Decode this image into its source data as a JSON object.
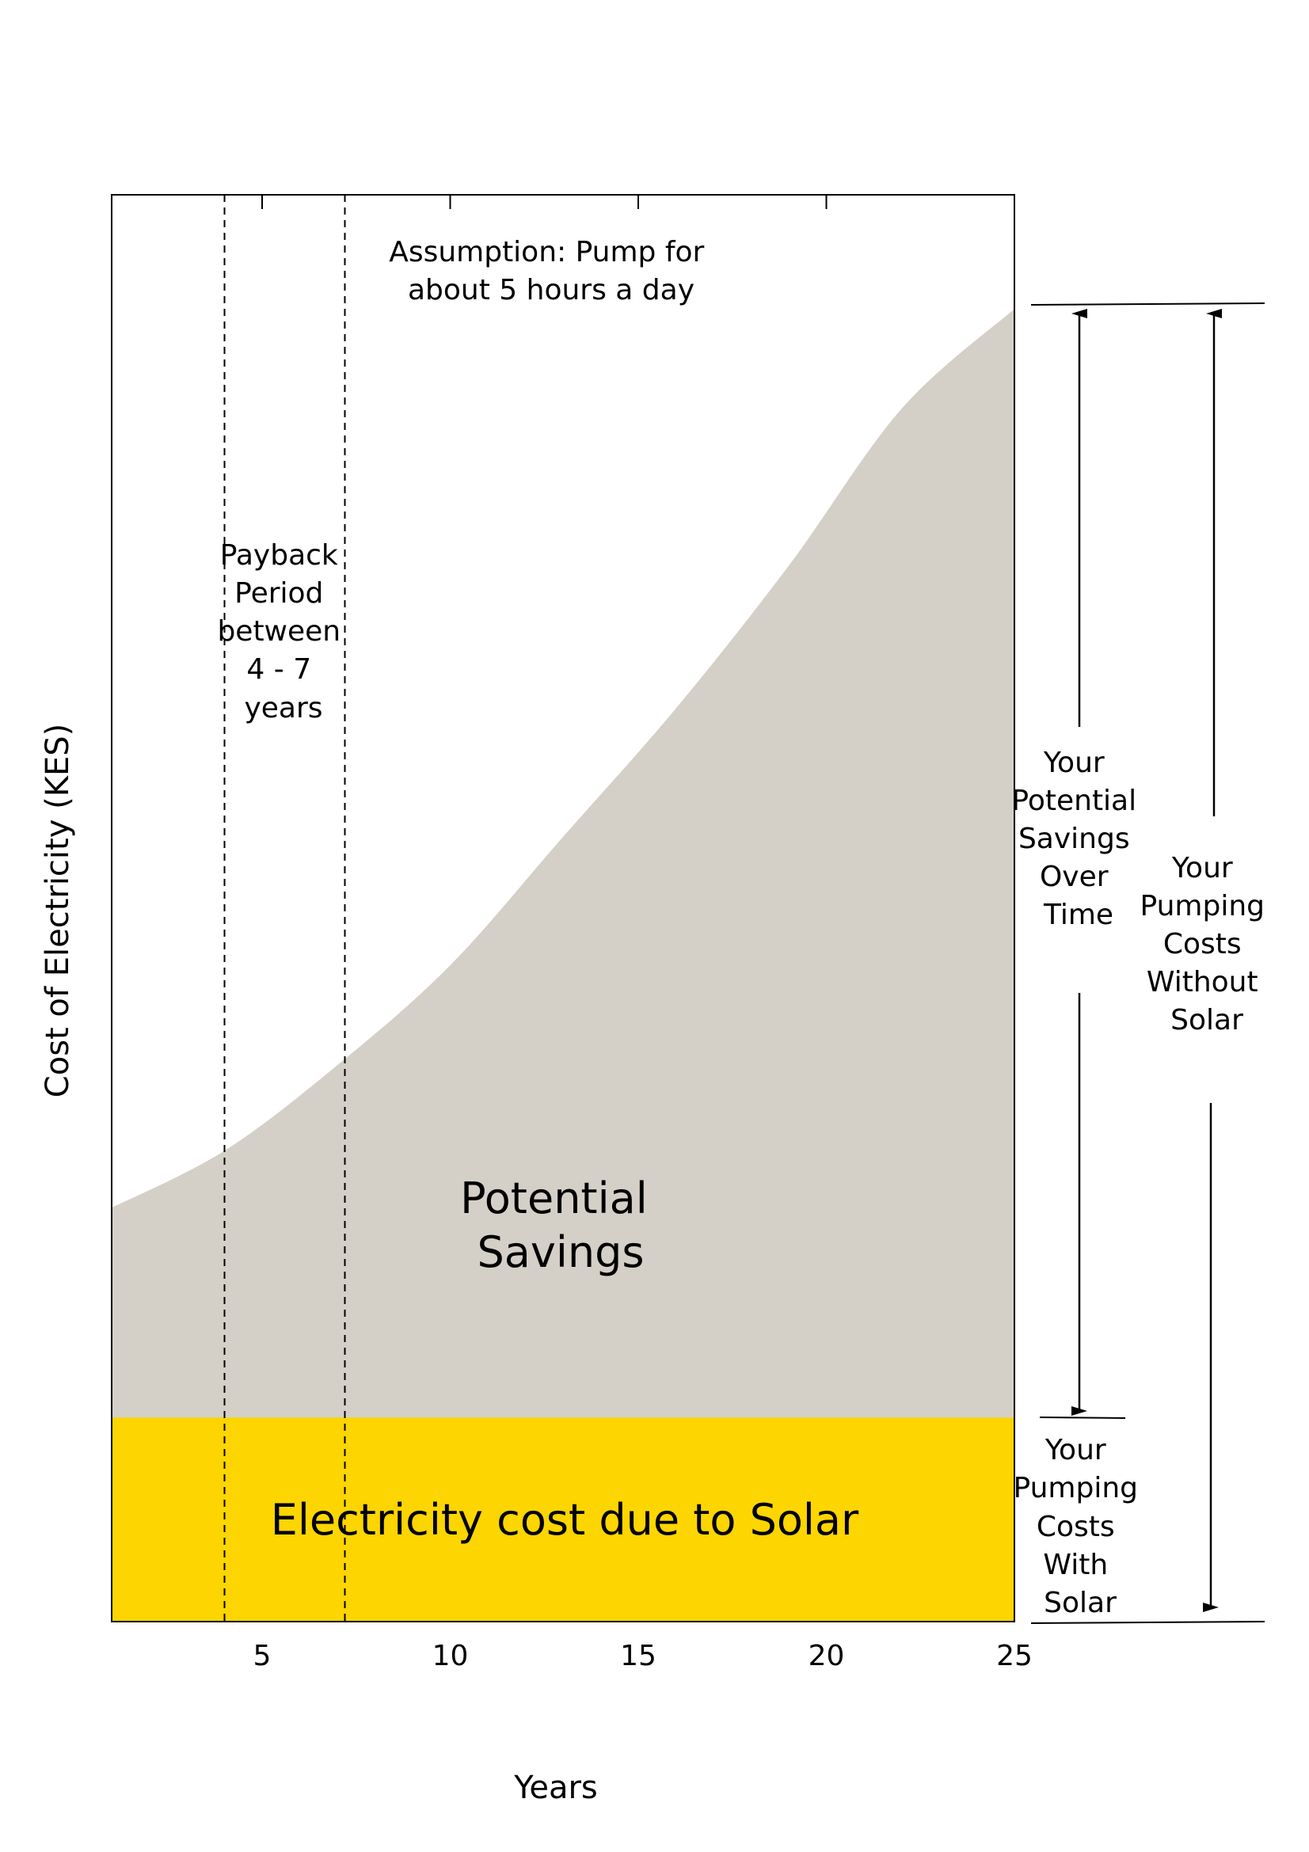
{
  "chart_data": {
    "type": "area",
    "xlabel": "Years",
    "ylabel": "Cost of Electricity (KES)",
    "xlim": [
      1,
      25
    ],
    "x_ticks": [
      5,
      10,
      15,
      20,
      25
    ],
    "y_ticks": [],
    "grid": false,
    "ylim": [
      0,
      100
    ],
    "series": [
      {
        "name": "Potential Savings",
        "color": "#d4d0c8",
        "x": [
          1,
          4,
          7,
          10,
          13,
          16,
          19,
          22,
          25
        ],
        "values": [
          29,
          33,
          39,
          46,
          55,
          64,
          74,
          85,
          92
        ]
      },
      {
        "name": "Electricity cost due to Solar",
        "color": "#fdd500",
        "x": [
          1,
          25
        ],
        "values": [
          14.3,
          14.3
        ]
      }
    ],
    "payback_lines_x": [
      4,
      7.2
    ],
    "annotations": {
      "assumption": [
        "Assumption: Pump for",
        "about 5 hours a day"
      ],
      "payback": [
        "Payback",
        "Period",
        "between",
        "4 - 7",
        "years"
      ],
      "savings_area_label": [
        "Potential",
        "Savings"
      ],
      "solar_area_label": "Electricity cost due to Solar",
      "potential_savings_over_time": [
        "Your",
        "Potential",
        "Savings",
        "Over",
        "Time"
      ],
      "costs_without_solar": [
        "Your",
        "Pumping",
        "Costs",
        "Without",
        "Solar"
      ],
      "costs_with_solar": [
        "Your",
        "Pumping",
        "Costs",
        "With",
        "Solar"
      ]
    }
  }
}
